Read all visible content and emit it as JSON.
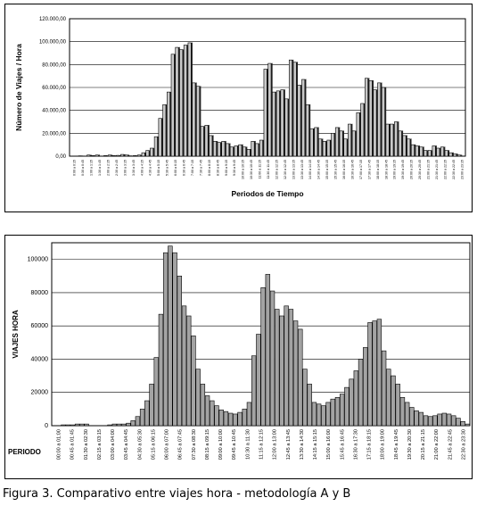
{
  "caption": "Figura 3. Comparativo entre viajes hora - metodología A y B",
  "chart_data": [
    {
      "type": "bar",
      "series_style": "3d-bars",
      "ylabel": "Número de Viajes / Hora",
      "xlabel": "Periodos de Tiempo",
      "ylim": [
        0,
        120000
      ],
      "y_ticks": [
        "0,00",
        "20.000,00",
        "40.000,00",
        "60.000,00",
        "80.000,00",
        "100.000,00",
        "120.000,00"
      ],
      "y_tick_values": [
        0,
        20000,
        40000,
        60000,
        80000,
        100000,
        120000
      ],
      "grid": true,
      "values": [
        0,
        0,
        300,
        0,
        1000,
        500,
        1000,
        0,
        500,
        1000,
        500,
        700,
        1500,
        1000,
        300,
        500,
        1000,
        3000,
        5000,
        7000,
        17000,
        33000,
        45000,
        56000,
        89000,
        95000,
        93000,
        97000,
        99000,
        64000,
        61000,
        26000,
        27000,
        18000,
        13000,
        12000,
        13000,
        11000,
        8000,
        9000,
        10000,
        8000,
        6000,
        13000,
        11000,
        14000,
        76000,
        81000,
        56000,
        57000,
        58000,
        50000,
        84000,
        82000,
        62000,
        67000,
        45000,
        24000,
        25000,
        15000,
        13000,
        14000,
        20000,
        25000,
        22000,
        15000,
        28000,
        22000,
        38000,
        46000,
        68000,
        66000,
        58000,
        64000,
        60000,
        28000,
        28000,
        30000,
        22000,
        18000,
        15000,
        10000,
        9000,
        8000,
        5000,
        5000,
        9000,
        7000,
        8000,
        5000,
        3000,
        2000,
        1000,
        0
      ],
      "x_labels": [
        "0:00 a 0:15",
        "0:30 a 0:45",
        "1:00 a 1:15",
        "1:30 a 1:45",
        "2:00 a 2:15",
        "2:30 a 2:45",
        "3:00 a 3:15",
        "3:30 a 3:45",
        "4:00 a 4:15",
        "4:30 a 4:45",
        "5:00 a 5:15",
        "5:30 a 5:45",
        "6:00 a 6:15",
        "6:30 a 6:45",
        "7:00 a 7:15",
        "7:30 a 7:45",
        "8:00 a 8:15",
        "8:30 a 8:45",
        "9:00 a 9:15",
        "9:30 a 9:45",
        "10:00 a 10:15",
        "10:30 a 10:45",
        "11:00 a 11:15",
        "11:30 a 11:45",
        "12:00 a 12:15",
        "12:30 a 12:45",
        "13:00 a 13:15",
        "13:30 a 13:45",
        "14:00 a 14:15",
        "14:30 a 14:45",
        "15:00 a 15:15",
        "15:30 a 15:45",
        "16:00 a 16:15",
        "16:30 a 16:45",
        "17:00 a 17:15",
        "17:30 a 17:45",
        "18:00 a 18:15",
        "18:30 a 18:45",
        "19:00 a 19:15",
        "19:30 a 19:45",
        "20:00 a 20:15",
        "20:30 a 20:45",
        "21:00 a 21:15",
        "21:30 a 21:45",
        "22:00 a 22:15",
        "22:30 a 22:45",
        "23:00 a 23:15"
      ]
    },
    {
      "type": "bar",
      "ylabel": "VIAJES HORA",
      "xlabel": "PERIODO",
      "ylim": [
        0,
        110000
      ],
      "y_ticks": [
        "0",
        "20000",
        "40000",
        "60000",
        "80000",
        "100000"
      ],
      "y_tick_values": [
        0,
        20000,
        40000,
        60000,
        80000,
        100000
      ],
      "grid": true,
      "values": [
        0,
        0,
        500,
        500,
        500,
        1000,
        1000,
        1000,
        0,
        0,
        0,
        0,
        500,
        1000,
        1000,
        1000,
        1500,
        3000,
        5500,
        10000,
        15000,
        25000,
        41000,
        67000,
        104000,
        108000,
        104000,
        90000,
        72000,
        66000,
        54000,
        34000,
        25000,
        18000,
        15000,
        12000,
        9500,
        8500,
        7500,
        7000,
        8000,
        10000,
        14000,
        42000,
        55000,
        83000,
        91000,
        81000,
        70000,
        66000,
        72000,
        70000,
        63000,
        58000,
        34000,
        25000,
        14000,
        13000,
        12000,
        14000,
        16000,
        17000,
        19000,
        23000,
        28000,
        33000,
        40000,
        47000,
        62000,
        63000,
        64000,
        45000,
        34000,
        30000,
        25000,
        17000,
        14000,
        11000,
        9000,
        8000,
        6000,
        5500,
        6000,
        7000,
        7500,
        7000,
        6000,
        4500,
        2500,
        1000
      ],
      "x_labels": [
        "00:00 a 01:00",
        "00:45 a 01:45",
        "01:30 a 02:30",
        "02:15 a 03:15",
        "03:00 a 04:00",
        "03:45 a 04:45",
        "04:30 a 05:30",
        "05:15 a 06:15",
        "06:00 a 07:00",
        "06:45 a 07:45",
        "07:30 a 08:30",
        "08:15 a 09:15",
        "09:00 a 10:00",
        "09:45 a 10:45",
        "10:30 a 11:30",
        "11:15 a 12:15",
        "12:00 a 13:00",
        "12:45 a 13:45",
        "13:30 a 14:30",
        "14:15 a 15:15",
        "15:00 a 16:00",
        "15:45 a 16:45",
        "16:30 a 17:30",
        "17:15 a 18:15",
        "18:00 a 19:00",
        "18:45 a 19:45",
        "19:30 a 20:30",
        "20:15 a 21:15",
        "21:00 a 22:00",
        "21:45 a 22:45",
        "22:30 a 23:30"
      ]
    }
  ]
}
